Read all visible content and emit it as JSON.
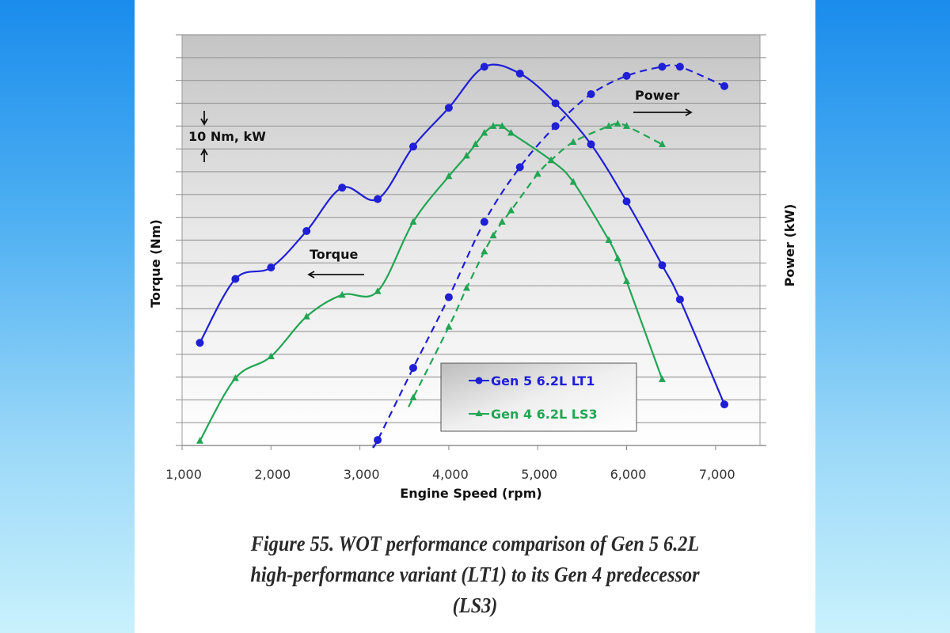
{
  "chart_data": {
    "type": "line",
    "xlabel": "Engine Speed (rpm)",
    "ylabel_left": "Torque (Nm)",
    "ylabel_right": "Power (kW)",
    "xlim": [
      1000,
      7500
    ],
    "x_ticks": [
      1000,
      2000,
      3000,
      4000,
      5000,
      6000,
      7000
    ],
    "x_tick_labels": [
      "1,000",
      "2,000",
      "3,000",
      "4,000",
      "5,000",
      "6,000",
      "7,000"
    ],
    "ylim": [
      0,
      180
    ],
    "y_grid_step": 10,
    "y_tick_labels_shown": false,
    "grid": "horizontal",
    "legend_placement": "bottom-center",
    "annotations": {
      "scale_note": "10 Nm, kW",
      "torque_label": "Torque",
      "power_label": "Power"
    },
    "series": [
      {
        "name": "Gen 5 6.2L LT1",
        "quantity": "torque",
        "color": "#1f1fd6",
        "marker": "circle",
        "dashed": false,
        "x": [
          1200,
          1600,
          2000,
          2400,
          2800,
          3200,
          3600,
          4000,
          4400,
          4800,
          5200,
          5600,
          6000,
          6400,
          6600,
          7100
        ],
        "y": [
          45,
          73,
          78,
          94,
          113,
          108,
          131,
          148,
          166,
          163,
          150,
          132,
          107,
          79,
          64,
          18
        ]
      },
      {
        "name": "Gen 4 6.2L LS3",
        "quantity": "torque",
        "color": "#22a553",
        "marker": "triangle",
        "dashed": false,
        "x": [
          1200,
          1600,
          2000,
          2400,
          2800,
          3200,
          3600,
          4000,
          4200,
          4300,
          4400,
          4500,
          4600,
          4700,
          5150,
          5400,
          5800,
          5900,
          6000,
          6400
        ],
        "y": [
          2,
          29.5,
          39,
          56.5,
          66,
          67.6,
          98,
          118,
          127,
          132,
          137,
          140,
          140,
          137,
          125,
          115.5,
          90,
          82,
          72,
          29
        ]
      },
      {
        "name": "Gen 5 6.2L LT1",
        "quantity": "power",
        "color": "#1f1fd6",
        "marker": "circle",
        "dashed": true,
        "x": [
          3200,
          3600,
          4000,
          4400,
          4800,
          5200,
          5600,
          6000,
          6400,
          6600,
          7100
        ],
        "y": [
          2.4,
          34,
          65,
          98,
          122,
          140,
          154,
          162,
          166,
          166,
          157.5
        ]
      },
      {
        "name": "Gen 4 6.2L LS3",
        "quantity": "power",
        "color": "#22a553",
        "marker": "triangle",
        "dashed": true,
        "x": [
          3600,
          4000,
          4200,
          4400,
          4500,
          4600,
          4700,
          5000,
          5150,
          5400,
          5800,
          5900,
          6000,
          6400
        ],
        "y": [
          21,
          52,
          69,
          85,
          92,
          98,
          103,
          119,
          125,
          133,
          140,
          141,
          140,
          132
        ]
      }
    ],
    "legend": [
      "Gen 5 6.2L LT1",
      "Gen 4 6.2L LS3"
    ]
  },
  "caption": {
    "line1": "Figure 55. WOT performance comparison of Gen 5 6.2L",
    "line2": "high-performance variant (LT1) to its Gen 4 predecessor",
    "line3": "(LS3)"
  }
}
